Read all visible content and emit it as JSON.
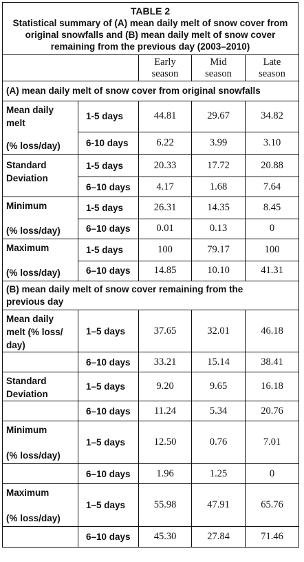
{
  "table_title": "TABLE 2",
  "caption": "Statistical summary of (A) mean daily melt of snow cover from original snowfalls and (B) mean daily melt of snow cover remaining from the previous day (2003–2010)",
  "columns": [
    {
      "line1": "Early",
      "line2": "season"
    },
    {
      "line1": "Mid",
      "line2": "season"
    },
    {
      "line1": "Late",
      "line2": "season"
    }
  ],
  "section_a": {
    "heading": "(A) mean daily melt of snow cover from original snowfalls",
    "mean": {
      "label1": "Mean daily",
      "label2": "melt",
      "label3": "(% loss/day)",
      "r1": {
        "days": "1-5 days",
        "v": [
          "44.81",
          "29.67",
          "34.82"
        ]
      },
      "r2": {
        "days": "6-10 days",
        "v": [
          "6.22",
          "3.99",
          "3.10"
        ]
      }
    },
    "sd": {
      "label1": "Standard",
      "label2": "Deviation",
      "r1": {
        "days": "1-5 days",
        "v": [
          "20.33",
          "17.72",
          "20.88"
        ]
      },
      "r2": {
        "days": "6–10 days",
        "v": [
          "4.17",
          "1.68",
          "7.64"
        ]
      }
    },
    "min": {
      "label1": "Minimum",
      "label2": "(% loss/day)",
      "r1": {
        "days": "1-5 days",
        "v": [
          "26.31",
          "14.35",
          "8.45"
        ]
      },
      "r2": {
        "days": "6–10 days",
        "v": [
          "0.01",
          "0.13",
          "0"
        ]
      }
    },
    "max": {
      "label1": "Maximum",
      "label2": "(% loss/day)",
      "r1": {
        "days": "1-5 days",
        "v": [
          "100",
          "79.17",
          "100"
        ]
      },
      "r2": {
        "days": "6–10 days",
        "v": [
          "14.85",
          "10.10",
          "41.31"
        ]
      }
    }
  },
  "section_b": {
    "heading": "(B) mean daily melt of snow cover remaining from the previous day",
    "mean": {
      "label1": "Mean daily",
      "label2": "melt (% loss/",
      "label3": "day)",
      "r1": {
        "days": "1–5 days",
        "v": [
          "37.65",
          "32.01",
          "46.18"
        ]
      },
      "r2": {
        "days": "6–10 days",
        "v": [
          "33.21",
          "15.14",
          "38.41"
        ]
      }
    },
    "sd": {
      "label1": "Standard",
      "label2": "Deviation",
      "r1": {
        "days": "1–5 days",
        "v": [
          "9.20",
          "9.65",
          "16.18"
        ]
      },
      "r2": {
        "days": "6–10 days",
        "v": [
          "11.24",
          "5.34",
          "20.76"
        ]
      }
    },
    "min": {
      "label1": "Minimum",
      "label2": "(% loss/day)",
      "r1": {
        "days": "1–5 days",
        "v": [
          "12.50",
          "0.76",
          "7.01"
        ]
      },
      "r2": {
        "days": "6–10 days",
        "v": [
          "1.96",
          "1.25",
          "0"
        ]
      }
    },
    "max": {
      "label1": "Maximum",
      "label2": "(% loss/day)",
      "r1": {
        "days": "1–5 days",
        "v": [
          "55.98",
          "47.91",
          "65.76"
        ]
      },
      "r2": {
        "days": "6–10 days",
        "v": [
          "45.30",
          "27.84",
          "71.46"
        ]
      }
    }
  }
}
